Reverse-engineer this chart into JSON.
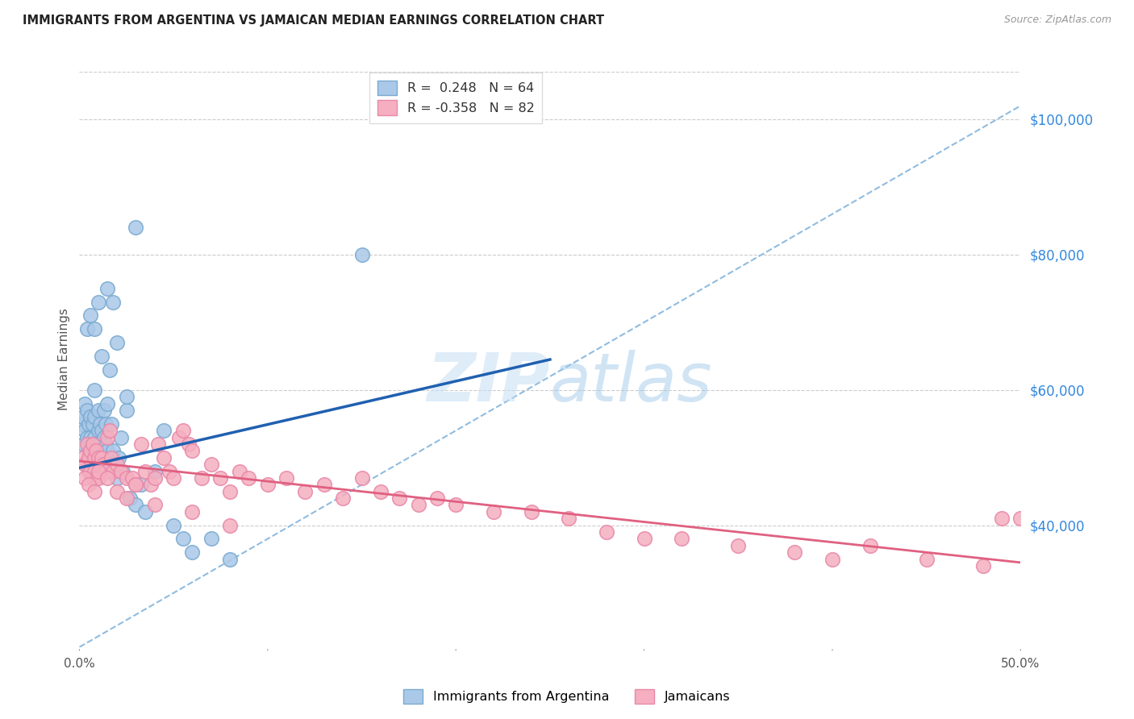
{
  "title": "IMMIGRANTS FROM ARGENTINA VS JAMAICAN MEDIAN EARNINGS CORRELATION CHART",
  "source": "Source: ZipAtlas.com",
  "ylabel": "Median Earnings",
  "right_yticks": [
    "$40,000",
    "$60,000",
    "$80,000",
    "$100,000"
  ],
  "right_ytick_values": [
    40000,
    60000,
    80000,
    100000
  ],
  "legend1_label": "R =  0.248   N = 64",
  "legend2_label": "R = -0.358   N = 82",
  "legend1_color": "#aac8e8",
  "legend2_color": "#f5afc0",
  "legend1_edge": "#7aaad0",
  "legend2_edge": "#e888a8",
  "blue_line_color": "#2060b0",
  "pink_line_color": "#e06080",
  "blue_dashed_color": "#90bce0",
  "watermark_color": "#cce4f5",
  "bottom_legend1": "Immigrants from Argentina",
  "bottom_legend2": "Jamaicans",
  "xlim": [
    0.0,
    0.5
  ],
  "ylim": [
    22000,
    107000
  ],
  "blue_line_x0": 0.0,
  "blue_line_y0": 48500,
  "blue_line_x1": 0.25,
  "blue_line_y1": 64500,
  "pink_line_x0": 0.0,
  "pink_line_y0": 49500,
  "pink_line_x1": 0.5,
  "pink_line_y1": 34500,
  "dashed_line_x0": 0.0,
  "dashed_line_y0": 22000,
  "dashed_line_x1": 0.5,
  "dashed_line_y1": 102000,
  "blue_scatter_x": [
    0.001,
    0.002,
    0.002,
    0.003,
    0.003,
    0.004,
    0.004,
    0.005,
    0.005,
    0.006,
    0.006,
    0.006,
    0.007,
    0.007,
    0.007,
    0.008,
    0.008,
    0.008,
    0.009,
    0.009,
    0.01,
    0.01,
    0.01,
    0.011,
    0.011,
    0.012,
    0.012,
    0.013,
    0.013,
    0.014,
    0.014,
    0.015,
    0.015,
    0.016,
    0.017,
    0.018,
    0.019,
    0.02,
    0.021,
    0.022,
    0.023,
    0.025,
    0.027,
    0.03,
    0.033,
    0.035,
    0.04,
    0.045,
    0.05,
    0.055,
    0.06,
    0.07,
    0.08,
    0.004,
    0.006,
    0.008,
    0.01,
    0.012,
    0.015,
    0.018,
    0.02,
    0.025,
    0.03,
    0.15
  ],
  "blue_scatter_y": [
    55000,
    56000,
    52000,
    54000,
    58000,
    53000,
    57000,
    51000,
    55000,
    50000,
    53000,
    56000,
    52000,
    55000,
    49000,
    53000,
    56000,
    60000,
    52000,
    48000,
    51000,
    54000,
    57000,
    52000,
    55000,
    51000,
    54000,
    53000,
    57000,
    52000,
    55000,
    51000,
    58000,
    63000,
    55000,
    51000,
    49000,
    47000,
    50000,
    53000,
    48000,
    57000,
    44000,
    43000,
    46000,
    42000,
    48000,
    54000,
    40000,
    38000,
    36000,
    38000,
    35000,
    69000,
    71000,
    69000,
    73000,
    65000,
    75000,
    73000,
    67000,
    59000,
    84000,
    80000
  ],
  "pink_scatter_x": [
    0.002,
    0.003,
    0.004,
    0.005,
    0.005,
    0.006,
    0.006,
    0.007,
    0.007,
    0.008,
    0.008,
    0.009,
    0.009,
    0.01,
    0.01,
    0.011,
    0.012,
    0.013,
    0.014,
    0.015,
    0.016,
    0.017,
    0.018,
    0.02,
    0.022,
    0.025,
    0.028,
    0.03,
    0.033,
    0.035,
    0.038,
    0.04,
    0.042,
    0.045,
    0.048,
    0.05,
    0.053,
    0.055,
    0.058,
    0.06,
    0.065,
    0.07,
    0.075,
    0.08,
    0.085,
    0.09,
    0.1,
    0.11,
    0.12,
    0.13,
    0.14,
    0.15,
    0.16,
    0.17,
    0.18,
    0.19,
    0.2,
    0.22,
    0.24,
    0.26,
    0.28,
    0.3,
    0.32,
    0.35,
    0.38,
    0.4,
    0.42,
    0.45,
    0.48,
    0.5,
    0.003,
    0.005,
    0.008,
    0.01,
    0.015,
    0.02,
    0.025,
    0.03,
    0.04,
    0.06,
    0.08,
    0.49
  ],
  "pink_scatter_y": [
    50000,
    49000,
    52000,
    50000,
    48000,
    51000,
    48000,
    52000,
    47000,
    50000,
    48000,
    51000,
    47000,
    50000,
    47000,
    49000,
    50000,
    49000,
    48000,
    53000,
    54000,
    50000,
    48000,
    49000,
    48000,
    47000,
    47000,
    46000,
    52000,
    48000,
    46000,
    47000,
    52000,
    50000,
    48000,
    47000,
    53000,
    54000,
    52000,
    51000,
    47000,
    49000,
    47000,
    45000,
    48000,
    47000,
    46000,
    47000,
    45000,
    46000,
    44000,
    47000,
    45000,
    44000,
    43000,
    44000,
    43000,
    42000,
    42000,
    41000,
    39000,
    38000,
    38000,
    37000,
    36000,
    35000,
    37000,
    35000,
    34000,
    41000,
    47000,
    46000,
    45000,
    48000,
    47000,
    45000,
    44000,
    46000,
    43000,
    42000,
    40000,
    41000
  ]
}
